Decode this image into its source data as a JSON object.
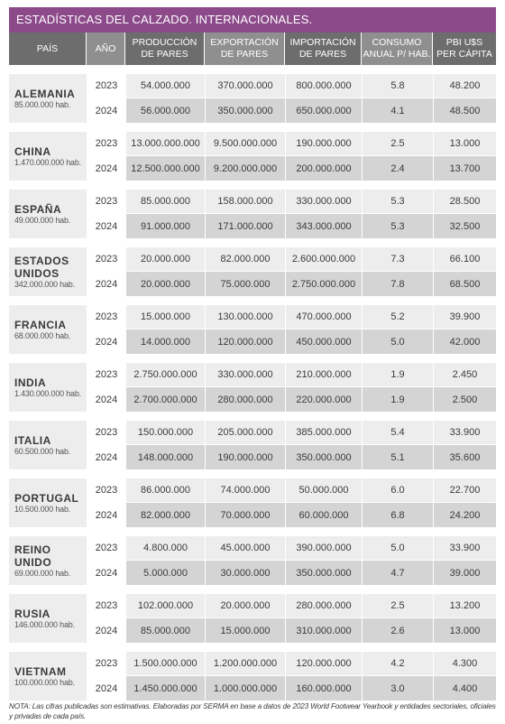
{
  "title": "ESTADÍSTICAS DEL CALZADO. INTERNACIONALES.",
  "headers": {
    "pais": "PAÍS",
    "anio": "AÑO",
    "produccion": [
      "PRODUCCIÓN",
      "DE PARES"
    ],
    "exportacion": [
      "EXPORTACIÓN",
      "DE PARES"
    ],
    "importacion": [
      "IMPORTACIÓN",
      "DE PARES"
    ],
    "consumo": [
      "CONSUMO",
      "ANUAL P/ HAB."
    ],
    "pbi": [
      "PBI U$S",
      "PER CÁPITA"
    ]
  },
  "countries": [
    {
      "name": [
        "ALEMANIA"
      ],
      "pop": "85.000.000 hab.",
      "rows": [
        [
          "2023",
          "54.000.000",
          "370.000.000",
          "800.000.000",
          "5.8",
          "48.200"
        ],
        [
          "2024",
          "56.000.000",
          "350.000.000",
          "650.000.000",
          "4.1",
          "48.500"
        ]
      ]
    },
    {
      "name": [
        "CHINA"
      ],
      "pop": "1.470.000.000 hab.",
      "rows": [
        [
          "2023",
          "13.000.000.000",
          "9.500.000.000",
          "190.000.000",
          "2.5",
          "13.000"
        ],
        [
          "2024",
          "12.500.000.000",
          "9.200.000.000",
          "200.000.000",
          "2.4",
          "13.700"
        ]
      ]
    },
    {
      "name": [
        "ESPAÑA"
      ],
      "pop": "49.000.000 hab.",
      "rows": [
        [
          "2023",
          "85.000.000",
          "158.000.000",
          "330.000.000",
          "5.3",
          "28.500"
        ],
        [
          "2024",
          "91.000.000",
          "171.000.000",
          "343.000.000",
          "5.3",
          "32.500"
        ]
      ]
    },
    {
      "name": [
        "ESTADOS",
        "UNIDOS"
      ],
      "pop": "342.000.000 hab.",
      "rows": [
        [
          "2023",
          "20.000.000",
          "82.000.000",
          "2.600.000.000",
          "7.3",
          "66.100"
        ],
        [
          "2024",
          "20.000.000",
          "75.000.000",
          "2.750.000.000",
          "7.8",
          "68.500"
        ]
      ]
    },
    {
      "name": [
        "FRANCIA"
      ],
      "pop": "68.000.000 hab.",
      "rows": [
        [
          "2023",
          "15.000.000",
          "130.000.000",
          "470.000.000",
          "5.2",
          "39.900"
        ],
        [
          "2024",
          "14.000.000",
          "120.000.000",
          "450.000.000",
          "5.0",
          "42.000"
        ]
      ]
    },
    {
      "name": [
        "INDIA"
      ],
      "pop": "1.430.000.000 hab.",
      "rows": [
        [
          "2023",
          "2.750.000.000",
          "330.000.000",
          "210.000.000",
          "1.9",
          "2.450"
        ],
        [
          "2024",
          "2.700.000.000",
          "280.000.000",
          "220.000.000",
          "1.9",
          "2.500"
        ]
      ]
    },
    {
      "name": [
        "ITALIA"
      ],
      "pop": "60.500.000 hab.",
      "rows": [
        [
          "2023",
          "150.000.000",
          "205.000.000",
          "385.000.000",
          "5.4",
          "33.900"
        ],
        [
          "2024",
          "148.000.000",
          "190.000.000",
          "350.000.000",
          "5.1",
          "35.600"
        ]
      ]
    },
    {
      "name": [
        "PORTUGAL"
      ],
      "pop": "10.500.000 hab.",
      "rows": [
        [
          "2023",
          "86.000.000",
          "74.000.000",
          "50.000.000",
          "6.0",
          "22.700"
        ],
        [
          "2024",
          "82.000.000",
          "70.000.000",
          "60.000.000",
          "6.8",
          "24.200"
        ]
      ]
    },
    {
      "name": [
        "REINO",
        "UNIDO"
      ],
      "pop": "69.000.000 hab.",
      "rows": [
        [
          "2023",
          "4.800.000",
          "45.000.000",
          "390.000.000",
          "5.0",
          "33.900"
        ],
        [
          "2024",
          "5.000.000",
          "30.000.000",
          "350.000.000",
          "4.7",
          "39.000"
        ]
      ]
    },
    {
      "name": [
        "RUSIA"
      ],
      "pop": "146.000.000 hab.",
      "rows": [
        [
          "2023",
          "102.000.000",
          "20.000.000",
          "280.000.000",
          "2.5",
          "13.200"
        ],
        [
          "2024",
          "85.000.000",
          "15.000.000",
          "310.000.000",
          "2.6",
          "13.000"
        ]
      ]
    },
    {
      "name": [
        "VIETNAM"
      ],
      "pop": "100.000.000 hab.",
      "rows": [
        [
          "2023",
          "1.500.000.000",
          "1.200.000.000",
          "120.000.000",
          "4.2",
          "4.300"
        ],
        [
          "2024",
          "1.450.000.000",
          "1.000.000.000",
          "160.000.000",
          "3.0",
          "4.400"
        ]
      ]
    }
  ],
  "note": "NOTA: Las cifras publicadas son estimativas. Elaboradas por SERMA en base a datos de 2023 World Footwear Yearbook y entidades sectoriales, oficiales y privadas de cada país."
}
